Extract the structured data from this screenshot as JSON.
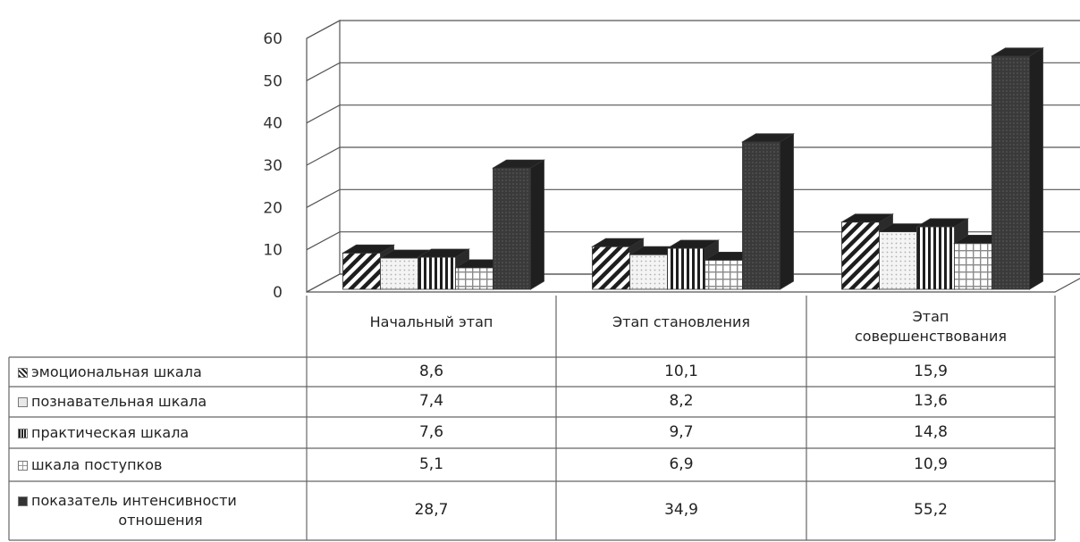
{
  "chart_data": {
    "type": "bar",
    "categories": [
      "Начальный этап",
      "Этап становления",
      "Этап совершенствования"
    ],
    "category_lines": [
      [
        "Начальный этап"
      ],
      [
        "Этап становления"
      ],
      [
        "Этап",
        "совершенствования"
      ]
    ],
    "series": [
      {
        "name": "эмоциональная шкала",
        "values": [
          8.6,
          10.1,
          15.9
        ],
        "display": [
          "8,6",
          "10,1",
          "15,9"
        ],
        "pattern": "diagonal"
      },
      {
        "name": "познавательная шкала",
        "values": [
          7.4,
          8.2,
          13.6
        ],
        "display": [
          "7,4",
          "8,2",
          "13,6"
        ],
        "pattern": "dots"
      },
      {
        "name": "практическая шкала",
        "values": [
          7.6,
          9.7,
          14.8
        ],
        "display": [
          "7,6",
          "9,7",
          "14,8"
        ],
        "pattern": "vertical"
      },
      {
        "name": "шкала поступков",
        "values": [
          5.1,
          6.9,
          10.9
        ],
        "display": [
          "5,1",
          "6,9",
          "10,9"
        ],
        "pattern": "grid"
      },
      {
        "name": "показатель интенсивности отношения",
        "name_lines": [
          "показатель интенсивности",
          "отношения"
        ],
        "values": [
          28.7,
          34.9,
          55.2
        ],
        "display": [
          "28,7",
          "34,9",
          "55,2"
        ],
        "pattern": "dark"
      }
    ],
    "ylim": [
      0,
      60
    ],
    "yticks": [
      "0",
      "10",
      "20",
      "30",
      "40",
      "50",
      "60"
    ],
    "grid": true,
    "style": "3d-clustered-bar-with-data-table",
    "colors": {
      "dark": "#3a3a3a",
      "grid": "#555555",
      "pattern": "#222222"
    }
  }
}
